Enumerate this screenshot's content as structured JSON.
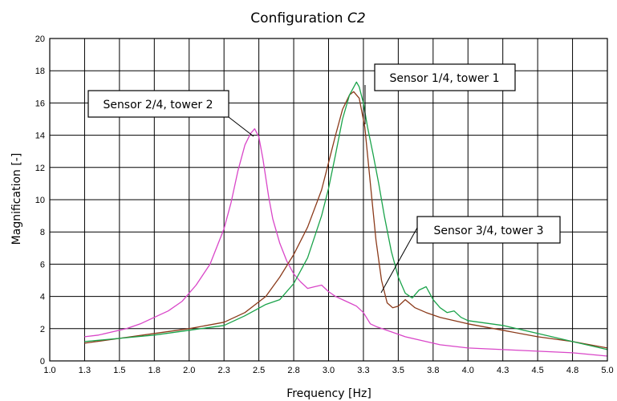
{
  "chart_data": {
    "type": "line",
    "title": "Configuration ",
    "title_italic": "C2",
    "xlabel": "Frequency [Hz]",
    "ylabel": "Magnification [-]",
    "xlim": [
      1.0,
      5.0
    ],
    "ylim": [
      0,
      20
    ],
    "xticks": [
      1.0,
      1.25,
      1.5,
      1.75,
      2.0,
      2.25,
      2.5,
      2.75,
      3.0,
      3.25,
      3.5,
      3.75,
      4.0,
      4.25,
      4.5,
      4.75,
      5.0
    ],
    "xtick_labels": [
      "1.0",
      "1.3",
      "1.5",
      "1.8",
      "2.0",
      "2.3",
      "2.5",
      "2.8",
      "3.0",
      "3.3",
      "3.5",
      "3.8",
      "4.0",
      "4.3",
      "4.5",
      "4.8",
      "5.0"
    ],
    "yticks": [
      0,
      2,
      4,
      6,
      8,
      10,
      12,
      14,
      16,
      18,
      20
    ],
    "ytick_labels": [
      "0",
      "2",
      "4",
      "6",
      "8",
      "10",
      "12",
      "14",
      "16",
      "18",
      "20"
    ],
    "grid": true,
    "series_colors": {
      "sensor2": "#d946c8",
      "sensor1": "#1aa34a",
      "sensor3": "#8b3a1a"
    },
    "series": [
      {
        "key": "sensor2",
        "x": [
          1.25,
          1.35,
          1.45,
          1.55,
          1.65,
          1.75,
          1.85,
          1.95,
          2.05,
          2.15,
          2.25,
          2.3,
          2.35,
          2.4,
          2.44,
          2.47,
          2.5,
          2.53,
          2.57,
          2.6,
          2.65,
          2.7,
          2.75,
          2.8,
          2.85,
          2.9,
          2.95,
          3.0,
          3.05,
          3.1,
          3.15,
          3.2,
          3.25,
          3.3,
          3.35,
          3.45,
          3.55,
          3.65,
          3.8,
          4.0,
          4.25,
          4.5,
          4.75,
          5.0
        ],
        "y": [
          1.5,
          1.6,
          1.8,
          2.0,
          2.3,
          2.7,
          3.1,
          3.7,
          4.7,
          6.0,
          8.2,
          9.8,
          11.8,
          13.4,
          14.1,
          14.4,
          13.9,
          12.5,
          10.2,
          8.8,
          7.3,
          6.2,
          5.4,
          4.9,
          4.5,
          4.6,
          4.7,
          4.3,
          4.0,
          3.8,
          3.6,
          3.4,
          3.0,
          2.3,
          2.1,
          1.8,
          1.5,
          1.3,
          1.0,
          0.8,
          0.7,
          0.6,
          0.5,
          0.3
        ]
      },
      {
        "key": "sensor3",
        "x": [
          1.25,
          1.5,
          1.75,
          2.0,
          2.25,
          2.4,
          2.55,
          2.65,
          2.75,
          2.85,
          2.95,
          3.0,
          3.05,
          3.1,
          3.15,
          3.18,
          3.22,
          3.26,
          3.3,
          3.34,
          3.38,
          3.42,
          3.46,
          3.5,
          3.55,
          3.62,
          3.7,
          3.8,
          4.0,
          4.25,
          4.5,
          4.75,
          5.0
        ],
        "y": [
          1.1,
          1.4,
          1.7,
          2.0,
          2.4,
          3.0,
          4.0,
          5.2,
          6.6,
          8.3,
          10.6,
          12.3,
          14.0,
          15.6,
          16.5,
          16.7,
          16.3,
          14.5,
          11.0,
          7.5,
          5.0,
          3.6,
          3.3,
          3.4,
          3.8,
          3.3,
          3.0,
          2.7,
          2.3,
          1.9,
          1.5,
          1.2,
          0.8
        ]
      },
      {
        "key": "sensor1",
        "x": [
          1.25,
          1.5,
          1.75,
          2.0,
          2.25,
          2.4,
          2.55,
          2.65,
          2.75,
          2.85,
          2.95,
          3.0,
          3.05,
          3.1,
          3.15,
          3.2,
          3.22,
          3.25,
          3.28,
          3.32,
          3.36,
          3.4,
          3.45,
          3.5,
          3.55,
          3.6,
          3.65,
          3.7,
          3.75,
          3.8,
          3.85,
          3.9,
          3.95,
          4.0,
          4.25,
          4.5,
          4.75,
          5.0
        ],
        "y": [
          1.2,
          1.4,
          1.6,
          1.9,
          2.2,
          2.8,
          3.5,
          3.8,
          4.8,
          6.4,
          9.0,
          10.7,
          12.8,
          15.0,
          16.5,
          17.3,
          17.0,
          16.0,
          14.5,
          12.8,
          11.0,
          9.0,
          6.8,
          5.2,
          4.2,
          3.9,
          4.4,
          4.6,
          3.8,
          3.3,
          3.0,
          3.1,
          2.7,
          2.5,
          2.2,
          1.7,
          1.2,
          0.7
        ]
      }
    ],
    "annotations": [
      {
        "text": "Sensor 1/4, tower 1",
        "series": "sensor1"
      },
      {
        "text": "Sensor 2/4, tower 2",
        "series": "sensor2"
      },
      {
        "text": "Sensor 3/4, tower 3",
        "series": "sensor3"
      }
    ]
  }
}
